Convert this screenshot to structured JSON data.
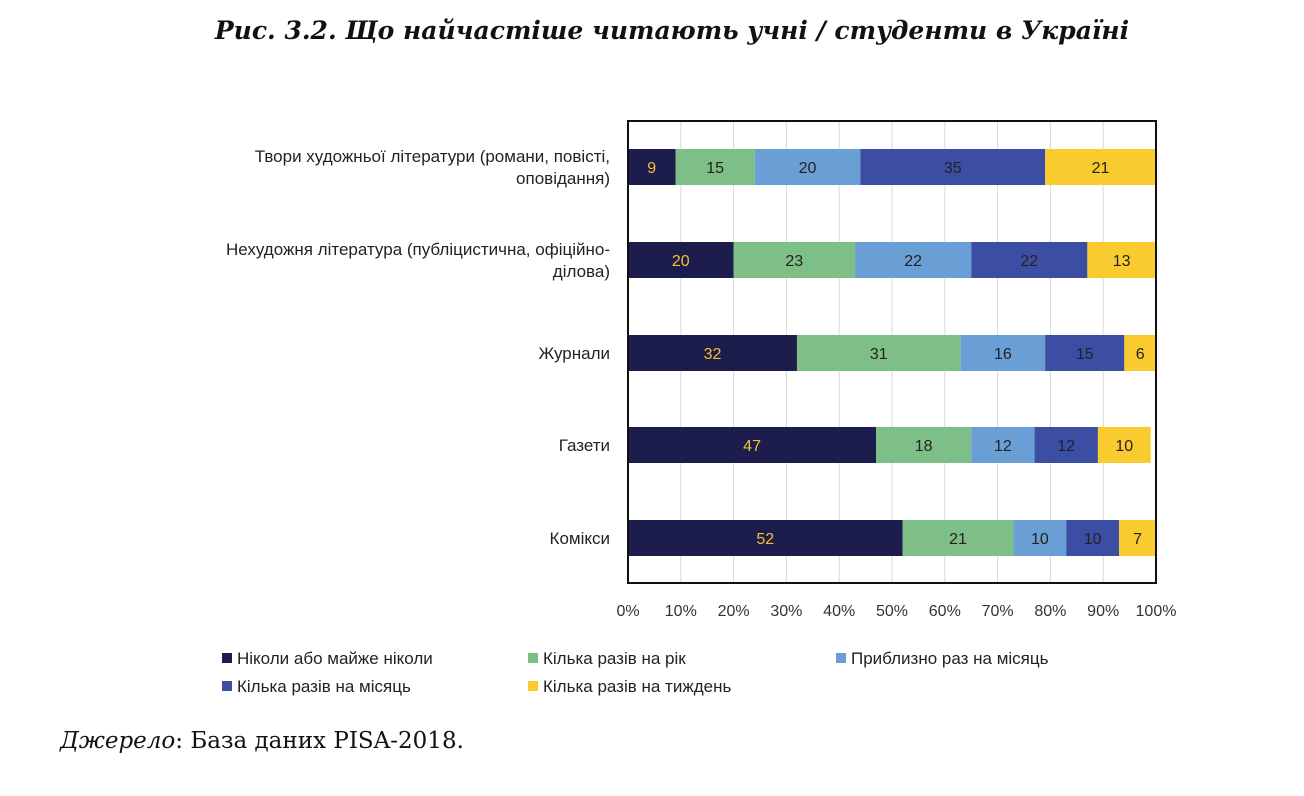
{
  "figure": {
    "title": "Рис. 3.2. Що найчастіше читають учні / студенти в Україні",
    "source_prefix": "Джерело",
    "source_rest": ": База даних PISA-2018."
  },
  "chart_data": {
    "type": "bar",
    "orientation": "horizontal",
    "stacked": true,
    "categories": [
      [
        "Твори художньої літератури (романи, повісті,",
        "оповідання)"
      ],
      [
        "Нехудожня література (публіцистична,  офіційно-",
        "ділова)"
      ],
      [
        "Журнали"
      ],
      [
        "Газети"
      ],
      [
        "Комікси"
      ]
    ],
    "series": [
      {
        "name": "Ніколи або майже ніколи",
        "color": "#1c1c4d",
        "label_color": "#f2c230",
        "values": [
          9,
          20,
          32,
          47,
          52
        ]
      },
      {
        "name": "Кілька разів на рік",
        "color": "#7dbf86",
        "label_color": "#222222",
        "values": [
          15,
          23,
          31,
          18,
          21
        ]
      },
      {
        "name": "Приблизно раз на місяць",
        "color": "#6a9fd6",
        "label_color": "#222222",
        "values": [
          20,
          22,
          16,
          12,
          10
        ]
      },
      {
        "name": "Кілька разів на місяць",
        "color": "#3b4ea3",
        "label_color": "#222222",
        "values": [
          35,
          22,
          15,
          12,
          10
        ]
      },
      {
        "name": "Кілька разів на тиждень",
        "color": "#f9cb2e",
        "label_color": "#222222",
        "values": [
          21,
          13,
          6,
          10,
          7
        ]
      }
    ],
    "x_ticks": [
      "0%",
      "10%",
      "20%",
      "30%",
      "40%",
      "50%",
      "60%",
      "70%",
      "80%",
      "90%",
      "100%"
    ],
    "xlim": [
      0,
      100
    ],
    "grid": true,
    "legend_position": "bottom"
  }
}
